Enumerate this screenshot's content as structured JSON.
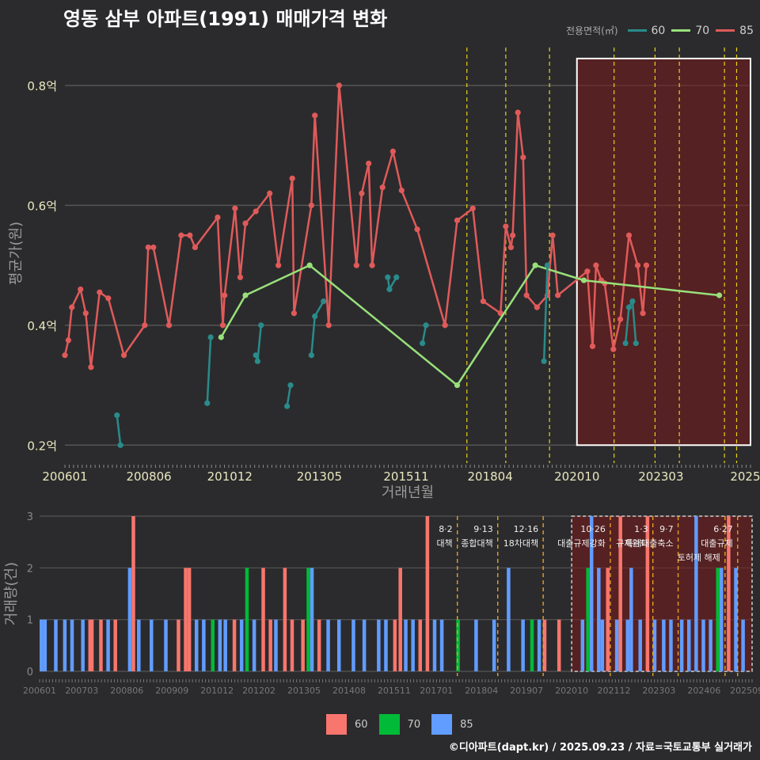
{
  "title": "영동 삼부 아파트(1991) 매매가격 변화",
  "footer": "©디아파트(dapt.kr) / 2025.09.23 / 자료=국토교통부 실거래가",
  "legend_top": {
    "title": "전용면적(㎡)",
    "items": [
      {
        "label": "60",
        "color": "#2a8b8b"
      },
      {
        "label": "70",
        "color": "#98e07a"
      },
      {
        "label": "85",
        "color": "#e05a5a"
      }
    ]
  },
  "legend_bottom": {
    "items": [
      {
        "label": "60",
        "color": "#f8766d"
      },
      {
        "label": "70",
        "color": "#00ba38"
      },
      {
        "label": "85",
        "color": "#619cff"
      }
    ]
  },
  "chart_data": [
    {
      "type": "line",
      "title": "영동 삼부 아파트(1991) 매매가격 변화",
      "xlabel": "거래년월",
      "ylabel": "평균가(원)",
      "xlim": [
        2006.0,
        2025.75
      ],
      "ylim": [
        0.17,
        0.87
      ],
      "yticks": [
        {
          "value": 0.2,
          "label": "0.2억"
        },
        {
          "value": 0.4,
          "label": "0.4억"
        },
        {
          "value": 0.6,
          "label": "0.6억"
        },
        {
          "value": 0.8,
          "label": "0.8억"
        }
      ],
      "xticks": [
        {
          "value": 2006.0,
          "label": "200601"
        },
        {
          "value": 2008.42,
          "label": "200806"
        },
        {
          "value": 2010.75,
          "label": "201012"
        },
        {
          "value": 2013.33,
          "label": "201305"
        },
        {
          "value": 2015.83,
          "label": "201511"
        },
        {
          "value": 2018.25,
          "label": "201804"
        },
        {
          "value": 2020.75,
          "label": "202010"
        },
        {
          "value": 2023.17,
          "label": "202303"
        },
        {
          "value": 2025.6,
          "label": "2025"
        }
      ],
      "policy_lines": [
        2017.58,
        2018.7,
        2019.96,
        2021.82,
        2023.0,
        2023.7,
        2025.0,
        2025.35
      ],
      "highlight": {
        "x_start": 2020.75,
        "x_end": 2025.75,
        "y_start": 0.2,
        "y_end": 0.845
      },
      "series": [
        {
          "name": "85",
          "color": "#e05a5a",
          "points": [
            [
              2006.0,
              0.35
            ],
            [
              2006.1,
              0.375
            ],
            [
              2006.2,
              0.43
            ],
            [
              2006.45,
              0.46
            ],
            [
              2006.6,
              0.42
            ],
            [
              2006.75,
              0.33
            ],
            [
              2007.0,
              0.455
            ],
            [
              2007.25,
              0.445
            ],
            [
              2007.7,
              0.35
            ],
            [
              2008.3,
              0.4
            ],
            [
              2008.4,
              0.53
            ],
            [
              2008.55,
              0.53
            ],
            [
              2009.0,
              0.4
            ],
            [
              2009.35,
              0.55
            ],
            [
              2009.6,
              0.55
            ],
            [
              2009.75,
              0.53
            ],
            [
              2010.4,
              0.58
            ],
            [
              2010.55,
              0.4
            ],
            [
              2010.6,
              0.45
            ],
            [
              2010.9,
              0.595
            ],
            [
              2011.05,
              0.48
            ],
            [
              2011.2,
              0.57
            ],
            [
              2011.5,
              0.59
            ],
            [
              2011.9,
              0.62
            ],
            [
              2012.15,
              0.5
            ],
            [
              2012.55,
              0.645
            ],
            [
              2012.6,
              0.42
            ],
            [
              2013.1,
              0.6
            ],
            [
              2013.2,
              0.75
            ],
            [
              2013.6,
              0.4
            ],
            [
              2013.9,
              0.8
            ],
            [
              2014.4,
              0.5
            ],
            [
              2014.55,
              0.62
            ],
            [
              2014.75,
              0.67
            ],
            [
              2014.85,
              0.5
            ],
            [
              2015.15,
              0.63
            ],
            [
              2015.45,
              0.69
            ],
            [
              2015.7,
              0.625
            ],
            [
              2016.15,
              0.56
            ],
            [
              2016.95,
              0.4
            ],
            [
              2017.3,
              0.575
            ],
            [
              2017.75,
              0.595
            ],
            [
              2018.05,
              0.44
            ],
            [
              2018.55,
              0.42
            ],
            [
              2018.7,
              0.565
            ],
            [
              2018.85,
              0.53
            ],
            [
              2018.9,
              0.55
            ],
            [
              2019.05,
              0.755
            ],
            [
              2019.2,
              0.68
            ],
            [
              2019.3,
              0.45
            ],
            [
              2019.6,
              0.43
            ],
            [
              2019.9,
              0.45
            ],
            [
              2020.05,
              0.55
            ],
            [
              2020.2,
              0.45
            ],
            [
              2021.05,
              0.49
            ],
            [
              2021.2,
              0.365
            ],
            [
              2021.3,
              0.5
            ],
            [
              2021.45,
              0.475
            ],
            [
              2021.55,
              0.47
            ],
            [
              2021.8,
              0.36
            ],
            [
              2022.0,
              0.41
            ],
            [
              2022.25,
              0.55
            ],
            [
              2022.5,
              0.5
            ],
            [
              2022.65,
              0.42
            ],
            [
              2022.75,
              0.5
            ]
          ]
        },
        {
          "name": "70",
          "color": "#98e07a",
          "points": [
            [
              2010.5,
              0.38
            ],
            [
              2011.2,
              0.45
            ],
            [
              2013.05,
              0.5
            ],
            [
              2017.3,
              0.3
            ],
            [
              2019.55,
              0.5
            ],
            [
              2020.95,
              0.475
            ],
            [
              2024.85,
              0.45
            ]
          ]
        },
        {
          "name": "60",
          "color": "#2a8b8b",
          "points": [
            [
              2007.5,
              0.25
            ],
            [
              2007.6,
              0.2
            ],
            [
              2010.1,
              0.27
            ],
            [
              2010.2,
              0.38
            ],
            [
              2011.5,
              0.35
            ],
            [
              2011.55,
              0.34
            ],
            [
              2011.65,
              0.4
            ],
            [
              2012.4,
              0.265
            ],
            [
              2012.5,
              0.3
            ],
            [
              2013.1,
              0.35
            ],
            [
              2013.2,
              0.415
            ],
            [
              2013.45,
              0.44
            ],
            [
              2015.3,
              0.48
            ],
            [
              2015.35,
              0.46
            ],
            [
              2015.55,
              0.48
            ],
            [
              2016.3,
              0.37
            ],
            [
              2016.4,
              0.4
            ],
            [
              2019.8,
              0.34
            ],
            [
              2019.9,
              0.5
            ],
            [
              2022.15,
              0.37
            ],
            [
              2022.25,
              0.43
            ],
            [
              2022.35,
              0.44
            ],
            [
              2022.45,
              0.37
            ]
          ]
        }
      ]
    },
    {
      "type": "bar",
      "xlabel": "",
      "ylabel": "거래량(건)",
      "xlim": [
        2006.0,
        2025.75
      ],
      "ylim": [
        0,
        3
      ],
      "yticks": [
        0,
        1,
        2,
        3
      ],
      "xticks": [
        {
          "value": 2006.0,
          "label": "200601"
        },
        {
          "value": 2007.17,
          "label": "200703"
        },
        {
          "value": 2008.42,
          "label": "200806"
        },
        {
          "value": 2009.67,
          "label": "200909"
        },
        {
          "value": 2010.92,
          "label": "201012"
        },
        {
          "value": 2012.08,
          "label": "201202"
        },
        {
          "value": 2013.33,
          "label": "201305"
        },
        {
          "value": 2014.58,
          "label": "201408"
        },
        {
          "value": 2015.83,
          "label": "201511"
        },
        {
          "value": 2017.0,
          "label": "201701"
        },
        {
          "value": 2018.25,
          "label": "201804"
        },
        {
          "value": 2019.5,
          "label": "201907"
        },
        {
          "value": 2020.75,
          "label": "202010"
        },
        {
          "value": 2021.92,
          "label": "202112"
        },
        {
          "value": 2023.17,
          "label": "202303"
        },
        {
          "value": 2024.42,
          "label": "202406"
        },
        {
          "value": 2025.6,
          "label": "202509"
        }
      ],
      "annotations": [
        {
          "x": 2017.58,
          "date": "8·2",
          "text": "대책"
        },
        {
          "x": 2018.7,
          "date": "9·13",
          "text": "종합대책"
        },
        {
          "x": 2019.96,
          "date": "12·16",
          "text": "18차대책"
        },
        {
          "x": 2021.82,
          "date": "10·26",
          "text": "대출규제강화"
        },
        {
          "x": 2023.0,
          "date": "1·3",
          "text": "규제완화"
        },
        {
          "x": 2023.7,
          "date": "9·7",
          "text": "특례대출축소"
        },
        {
          "x": 2025.35,
          "date": "6·27",
          "text": "대출규제"
        },
        {
          "x": 2025.0,
          "date": "",
          "text": "토허제 해제"
        }
      ],
      "policy_lines": [
        2017.58,
        2018.7,
        2019.96,
        2021.82,
        2023.0,
        2023.7,
        2025.0,
        2025.35
      ],
      "highlight": {
        "x_start": 2020.75,
        "x_end": 2025.75
      },
      "bars": [
        {
          "x": 2006.05,
          "count": 1,
          "area": "85"
        },
        {
          "x": 2006.15,
          "count": 1,
          "area": "85"
        },
        {
          "x": 2006.45,
          "count": 1,
          "area": "85"
        },
        {
          "x": 2006.7,
          "count": 1,
          "area": "85"
        },
        {
          "x": 2006.9,
          "count": 1,
          "area": "85"
        },
        {
          "x": 2007.2,
          "count": 1,
          "area": "85"
        },
        {
          "x": 2007.4,
          "count": 1,
          "area": "60"
        },
        {
          "x": 2007.45,
          "count": 1,
          "area": "60"
        },
        {
          "x": 2007.7,
          "count": 1,
          "area": "60"
        },
        {
          "x": 2007.9,
          "count": 1,
          "area": "85"
        },
        {
          "x": 2008.1,
          "count": 1,
          "area": "60"
        },
        {
          "x": 2008.5,
          "count": 2,
          "area": "85"
        },
        {
          "x": 2008.6,
          "count": 3,
          "area": "60"
        },
        {
          "x": 2008.75,
          "count": 1,
          "area": "85"
        },
        {
          "x": 2009.1,
          "count": 1,
          "area": "85"
        },
        {
          "x": 2009.5,
          "count": 1,
          "area": "85"
        },
        {
          "x": 2009.85,
          "count": 1,
          "area": "60"
        },
        {
          "x": 2010.05,
          "count": 2,
          "area": "60"
        },
        {
          "x": 2010.15,
          "count": 2,
          "area": "60"
        },
        {
          "x": 2010.35,
          "count": 1,
          "area": "85"
        },
        {
          "x": 2010.55,
          "count": 1,
          "area": "85"
        },
        {
          "x": 2010.8,
          "count": 1,
          "area": "70"
        },
        {
          "x": 2011.0,
          "count": 1,
          "area": "85"
        },
        {
          "x": 2011.15,
          "count": 1,
          "area": "85"
        },
        {
          "x": 2011.4,
          "count": 1,
          "area": "60"
        },
        {
          "x": 2011.6,
          "count": 1,
          "area": "85"
        },
        {
          "x": 2011.75,
          "count": 2,
          "area": "70"
        },
        {
          "x": 2011.95,
          "count": 1,
          "area": "85"
        },
        {
          "x": 2012.2,
          "count": 2,
          "area": "60"
        },
        {
          "x": 2012.4,
          "count": 1,
          "area": "60"
        },
        {
          "x": 2012.55,
          "count": 1,
          "area": "85"
        },
        {
          "x": 2012.8,
          "count": 2,
          "area": "60"
        },
        {
          "x": 2013.0,
          "count": 1,
          "area": "60"
        },
        {
          "x": 2013.3,
          "count": 1,
          "area": "60"
        },
        {
          "x": 2013.45,
          "count": 2,
          "area": "70"
        },
        {
          "x": 2013.55,
          "count": 2,
          "area": "85"
        },
        {
          "x": 2013.75,
          "count": 1,
          "area": "60"
        },
        {
          "x": 2014.0,
          "count": 1,
          "area": "85"
        },
        {
          "x": 2014.3,
          "count": 1,
          "area": "85"
        },
        {
          "x": 2014.7,
          "count": 1,
          "area": "85"
        },
        {
          "x": 2015.0,
          "count": 1,
          "area": "85"
        },
        {
          "x": 2015.4,
          "count": 1,
          "area": "85"
        },
        {
          "x": 2015.6,
          "count": 1,
          "area": "85"
        },
        {
          "x": 2015.85,
          "count": 1,
          "area": "60"
        },
        {
          "x": 2016.0,
          "count": 2,
          "area": "60"
        },
        {
          "x": 2016.15,
          "count": 1,
          "area": "85"
        },
        {
          "x": 2016.35,
          "count": 1,
          "area": "85"
        },
        {
          "x": 2016.55,
          "count": 1,
          "area": "60"
        },
        {
          "x": 2016.75,
          "count": 3,
          "area": "60"
        },
        {
          "x": 2016.95,
          "count": 1,
          "area": "85"
        },
        {
          "x": 2017.15,
          "count": 1,
          "area": "85"
        },
        {
          "x": 2017.6,
          "count": 1,
          "area": "70"
        },
        {
          "x": 2018.1,
          "count": 1,
          "area": "85"
        },
        {
          "x": 2018.6,
          "count": 1,
          "area": "85"
        },
        {
          "x": 2019.0,
          "count": 2,
          "area": "85"
        },
        {
          "x": 2019.4,
          "count": 1,
          "area": "85"
        },
        {
          "x": 2019.65,
          "count": 1,
          "area": "70"
        },
        {
          "x": 2019.85,
          "count": 1,
          "area": "85"
        },
        {
          "x": 2020.0,
          "count": 1,
          "area": "60"
        },
        {
          "x": 2020.4,
          "count": 1,
          "area": "60"
        },
        {
          "x": 2021.05,
          "count": 1,
          "area": "85"
        },
        {
          "x": 2021.2,
          "count": 2,
          "area": "70"
        },
        {
          "x": 2021.3,
          "count": 3,
          "area": "85"
        },
        {
          "x": 2021.5,
          "count": 2,
          "area": "85"
        },
        {
          "x": 2021.6,
          "count": 1,
          "area": "85"
        },
        {
          "x": 2021.75,
          "count": 2,
          "area": "60"
        },
        {
          "x": 2022.0,
          "count": 1,
          "area": "85"
        },
        {
          "x": 2022.1,
          "count": 3,
          "area": "60"
        },
        {
          "x": 2022.3,
          "count": 1,
          "area": "85"
        },
        {
          "x": 2022.4,
          "count": 2,
          "area": "85"
        },
        {
          "x": 2022.65,
          "count": 1,
          "area": "85"
        },
        {
          "x": 2022.85,
          "count": 3,
          "area": "60"
        },
        {
          "x": 2023.05,
          "count": 1,
          "area": "85"
        },
        {
          "x": 2023.3,
          "count": 1,
          "area": "85"
        },
        {
          "x": 2023.5,
          "count": 1,
          "area": "85"
        },
        {
          "x": 2023.8,
          "count": 1,
          "area": "85"
        },
        {
          "x": 2024.0,
          "count": 1,
          "area": "85"
        },
        {
          "x": 2024.2,
          "count": 3,
          "area": "85"
        },
        {
          "x": 2024.4,
          "count": 1,
          "area": "85"
        },
        {
          "x": 2024.6,
          "count": 1,
          "area": "85"
        },
        {
          "x": 2024.8,
          "count": 2,
          "area": "70"
        },
        {
          "x": 2024.9,
          "count": 2,
          "area": "85"
        },
        {
          "x": 2025.1,
          "count": 3,
          "area": "60"
        },
        {
          "x": 2025.3,
          "count": 2,
          "area": "85"
        },
        {
          "x": 2025.5,
          "count": 1,
          "area": "85"
        }
      ]
    }
  ]
}
